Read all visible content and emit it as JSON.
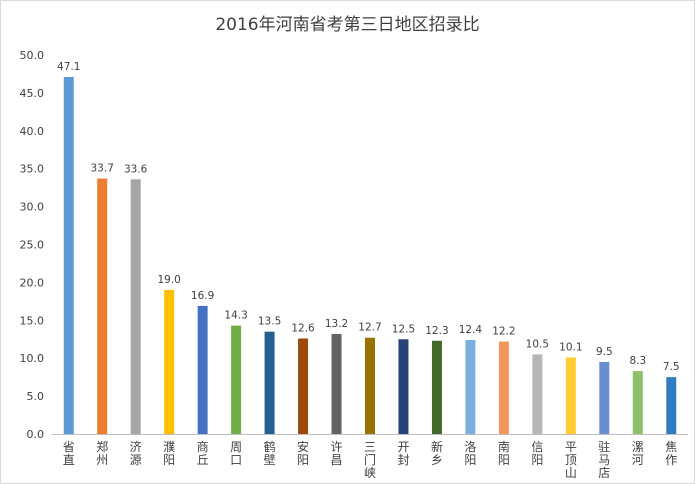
{
  "chart_data": {
    "type": "bar",
    "title": "2016年河南省考第三日地区招录比",
    "xlabel": "",
    "ylabel": "",
    "ylim": [
      0,
      50
    ],
    "yticks": [
      "0.0",
      "5.0",
      "10.0",
      "15.0",
      "20.0",
      "25.0",
      "30.0",
      "35.0",
      "40.0",
      "45.0",
      "50.0"
    ],
    "grid": false,
    "legend": "none",
    "categories": [
      "省直",
      "郑州",
      "济源",
      "濮阳",
      "商丘",
      "周口",
      "鹤壁",
      "安阳",
      "许昌",
      "三门峡",
      "开封",
      "新乡",
      "洛阳",
      "南阳",
      "信阳",
      "平顶山",
      "驻马店",
      "漯河",
      "焦作"
    ],
    "values": [
      47.1,
      33.7,
      33.6,
      19.0,
      16.9,
      14.3,
      13.5,
      12.6,
      13.2,
      12.7,
      12.5,
      12.3,
      12.4,
      12.2,
      10.5,
      10.1,
      9.5,
      8.3,
      7.5
    ],
    "value_labels": [
      "47.1",
      "33.7",
      "33.6",
      "19.0",
      "16.9",
      "14.3",
      "13.5",
      "12.6",
      "13.2",
      "12.7",
      "12.5",
      "12.3",
      "12.4",
      "12.2",
      "10.5",
      "10.1",
      "9.5",
      "8.3",
      "7.5"
    ],
    "colors": [
      "#5b9bd5",
      "#ed7d31",
      "#a5a5a5",
      "#ffc000",
      "#4472c4",
      "#70ad47",
      "#255e91",
      "#9e480e",
      "#636363",
      "#997300",
      "#264478",
      "#43682b",
      "#7cafdd",
      "#f1975a",
      "#b7b7b7",
      "#ffcd33",
      "#698ed0",
      "#8cc168",
      "#327dc2"
    ],
    "axis_color": "#bfbfbf"
  }
}
